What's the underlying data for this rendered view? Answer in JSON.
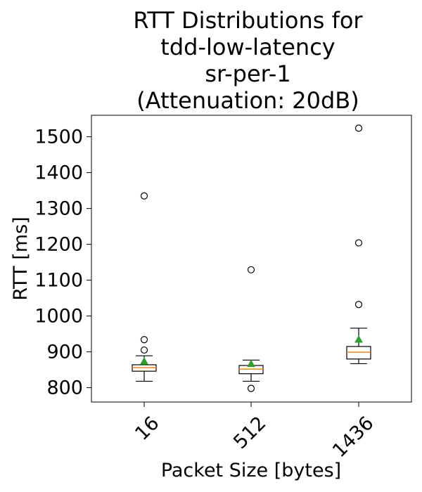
{
  "chart_data": {
    "type": "box",
    "title_lines": [
      "RTT Distributions for",
      "tdd-low-latency",
      "sr-per-1",
      "(Attenuation: 20dB)"
    ],
    "xlabel": "Packet Size [bytes]",
    "ylabel": "RTT [ms]",
    "categories": [
      "16",
      "512",
      "1436"
    ],
    "ylim": [
      760,
      1560
    ],
    "yticks": [
      800,
      900,
      1000,
      1100,
      1200,
      1300,
      1400,
      1500
    ],
    "grid": false,
    "boxes": [
      {
        "category": "16",
        "whisker_low": 818,
        "q1": 846,
        "median": 856,
        "q3": 864,
        "whisker_high": 889,
        "mean": 873,
        "outliers": [
          905,
          934,
          1335
        ]
      },
      {
        "category": "512",
        "whisker_low": 818,
        "q1": 839,
        "median": 852,
        "q3": 862,
        "whisker_high": 877,
        "mean": 866,
        "outliers": [
          798,
          1129
        ]
      },
      {
        "category": "1436",
        "whisker_low": 867,
        "q1": 880,
        "median": 899,
        "q3": 915,
        "whisker_high": 966,
        "mean": 934,
        "outliers": [
          1032,
          1204,
          1524
        ]
      }
    ],
    "colors": {
      "median": "#ff7f0e",
      "mean": "#2ca02c",
      "box": "#000000"
    }
  }
}
